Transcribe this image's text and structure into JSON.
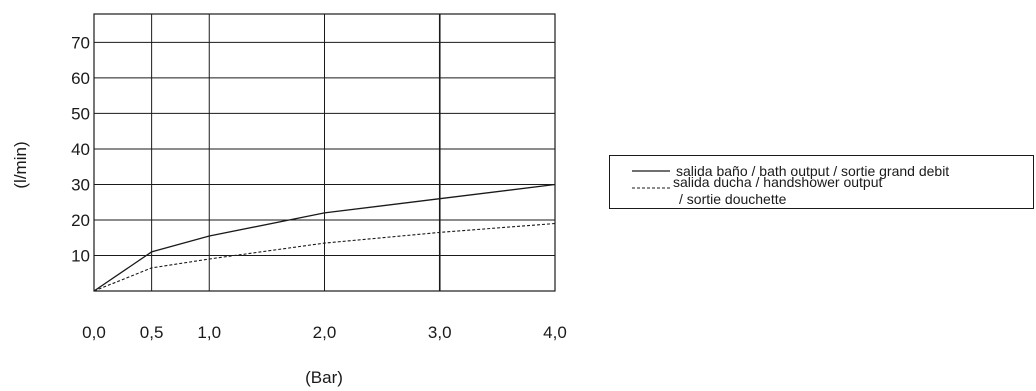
{
  "chart_data": {
    "type": "line",
    "xlabel": "(Bar)",
    "ylabel": "(l/min)",
    "x_ticks": [
      0.0,
      0.5,
      1.0,
      2.0,
      3.0,
      4.0
    ],
    "x_tick_labels": [
      "0,0",
      "0,5",
      "1,0",
      "2,0",
      "3,0",
      "4,0"
    ],
    "y_ticks": [
      10,
      20,
      30,
      40,
      50,
      60,
      70
    ],
    "y_tick_labels": [
      "10",
      "20",
      "30",
      "40",
      "50",
      "60",
      "70"
    ],
    "xlim": [
      0,
      4
    ],
    "ylim": [
      0,
      78
    ],
    "grid": true,
    "legend_position": "right",
    "series": [
      {
        "name": "salida baño / bath output / sortie grand debit",
        "style": "solid",
        "color": "#1a1a1a",
        "x": [
          0.0,
          0.5,
          1.0,
          2.0,
          3.0,
          4.0
        ],
        "y": [
          0,
          11,
          15.5,
          22,
          26,
          30
        ]
      },
      {
        "name_lines": [
          "salida ducha / handshower output",
          "/ sortie douchette"
        ],
        "style": "dashed",
        "color": "#1a1a1a",
        "x": [
          0.0,
          0.5,
          1.0,
          2.0,
          3.0,
          4.0
        ],
        "y": [
          0,
          6.5,
          9,
          13.5,
          16.5,
          19
        ]
      }
    ]
  }
}
